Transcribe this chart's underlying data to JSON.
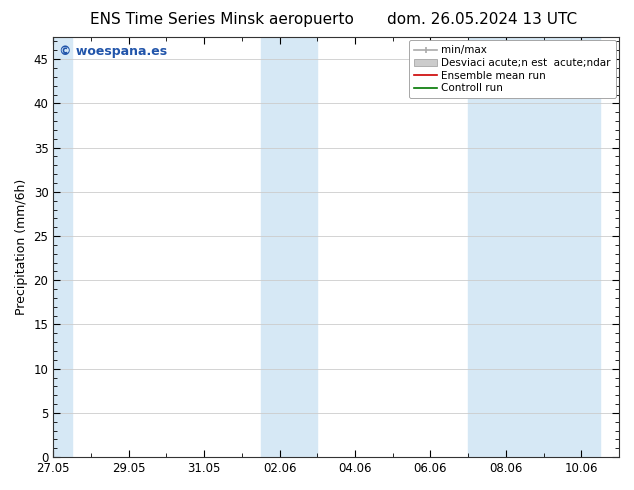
{
  "title_left": "ENS Time Series Minsk aeropuerto",
  "title_right": "dom. 26.05.2024 13 UTC",
  "ylabel": "Precipitation (mm/6h)",
  "xlabel": "",
  "ylim": [
    0,
    47.5
  ],
  "yticks": [
    0,
    5,
    10,
    15,
    20,
    25,
    30,
    35,
    40,
    45
  ],
  "xtick_labels": [
    "27.05",
    "29.05",
    "31.05",
    "02.06",
    "04.06",
    "06.06",
    "08.06",
    "10.06"
  ],
  "xtick_positions_days": [
    0,
    2,
    4,
    6,
    8,
    10,
    12,
    14
  ],
  "xlim": [
    0,
    15
  ],
  "shaded_bands": [
    {
      "start_day": -0.1,
      "end_day": 0.5
    },
    {
      "start_day": 5.5,
      "end_day": 7.0
    },
    {
      "start_day": 11.0,
      "end_day": 14.5
    }
  ],
  "bg_color": "#ffffff",
  "plot_bg_color": "#ffffff",
  "shade_color": "#d6e8f5",
  "shade_alpha": 1.0,
  "grid_color": "#cccccc",
  "legend_label_minmax": "min/max",
  "legend_label_std": "Desviaci acute;n est  acute;ndar",
  "legend_label_ens": "Ensemble mean run",
  "legend_label_ctrl": "Controll run",
  "watermark_text": "woespana.es",
  "watermark_color": "#2255aa",
  "title_fontsize": 11,
  "axis_fontsize": 9,
  "tick_fontsize": 8.5,
  "legend_fontsize": 7.5
}
